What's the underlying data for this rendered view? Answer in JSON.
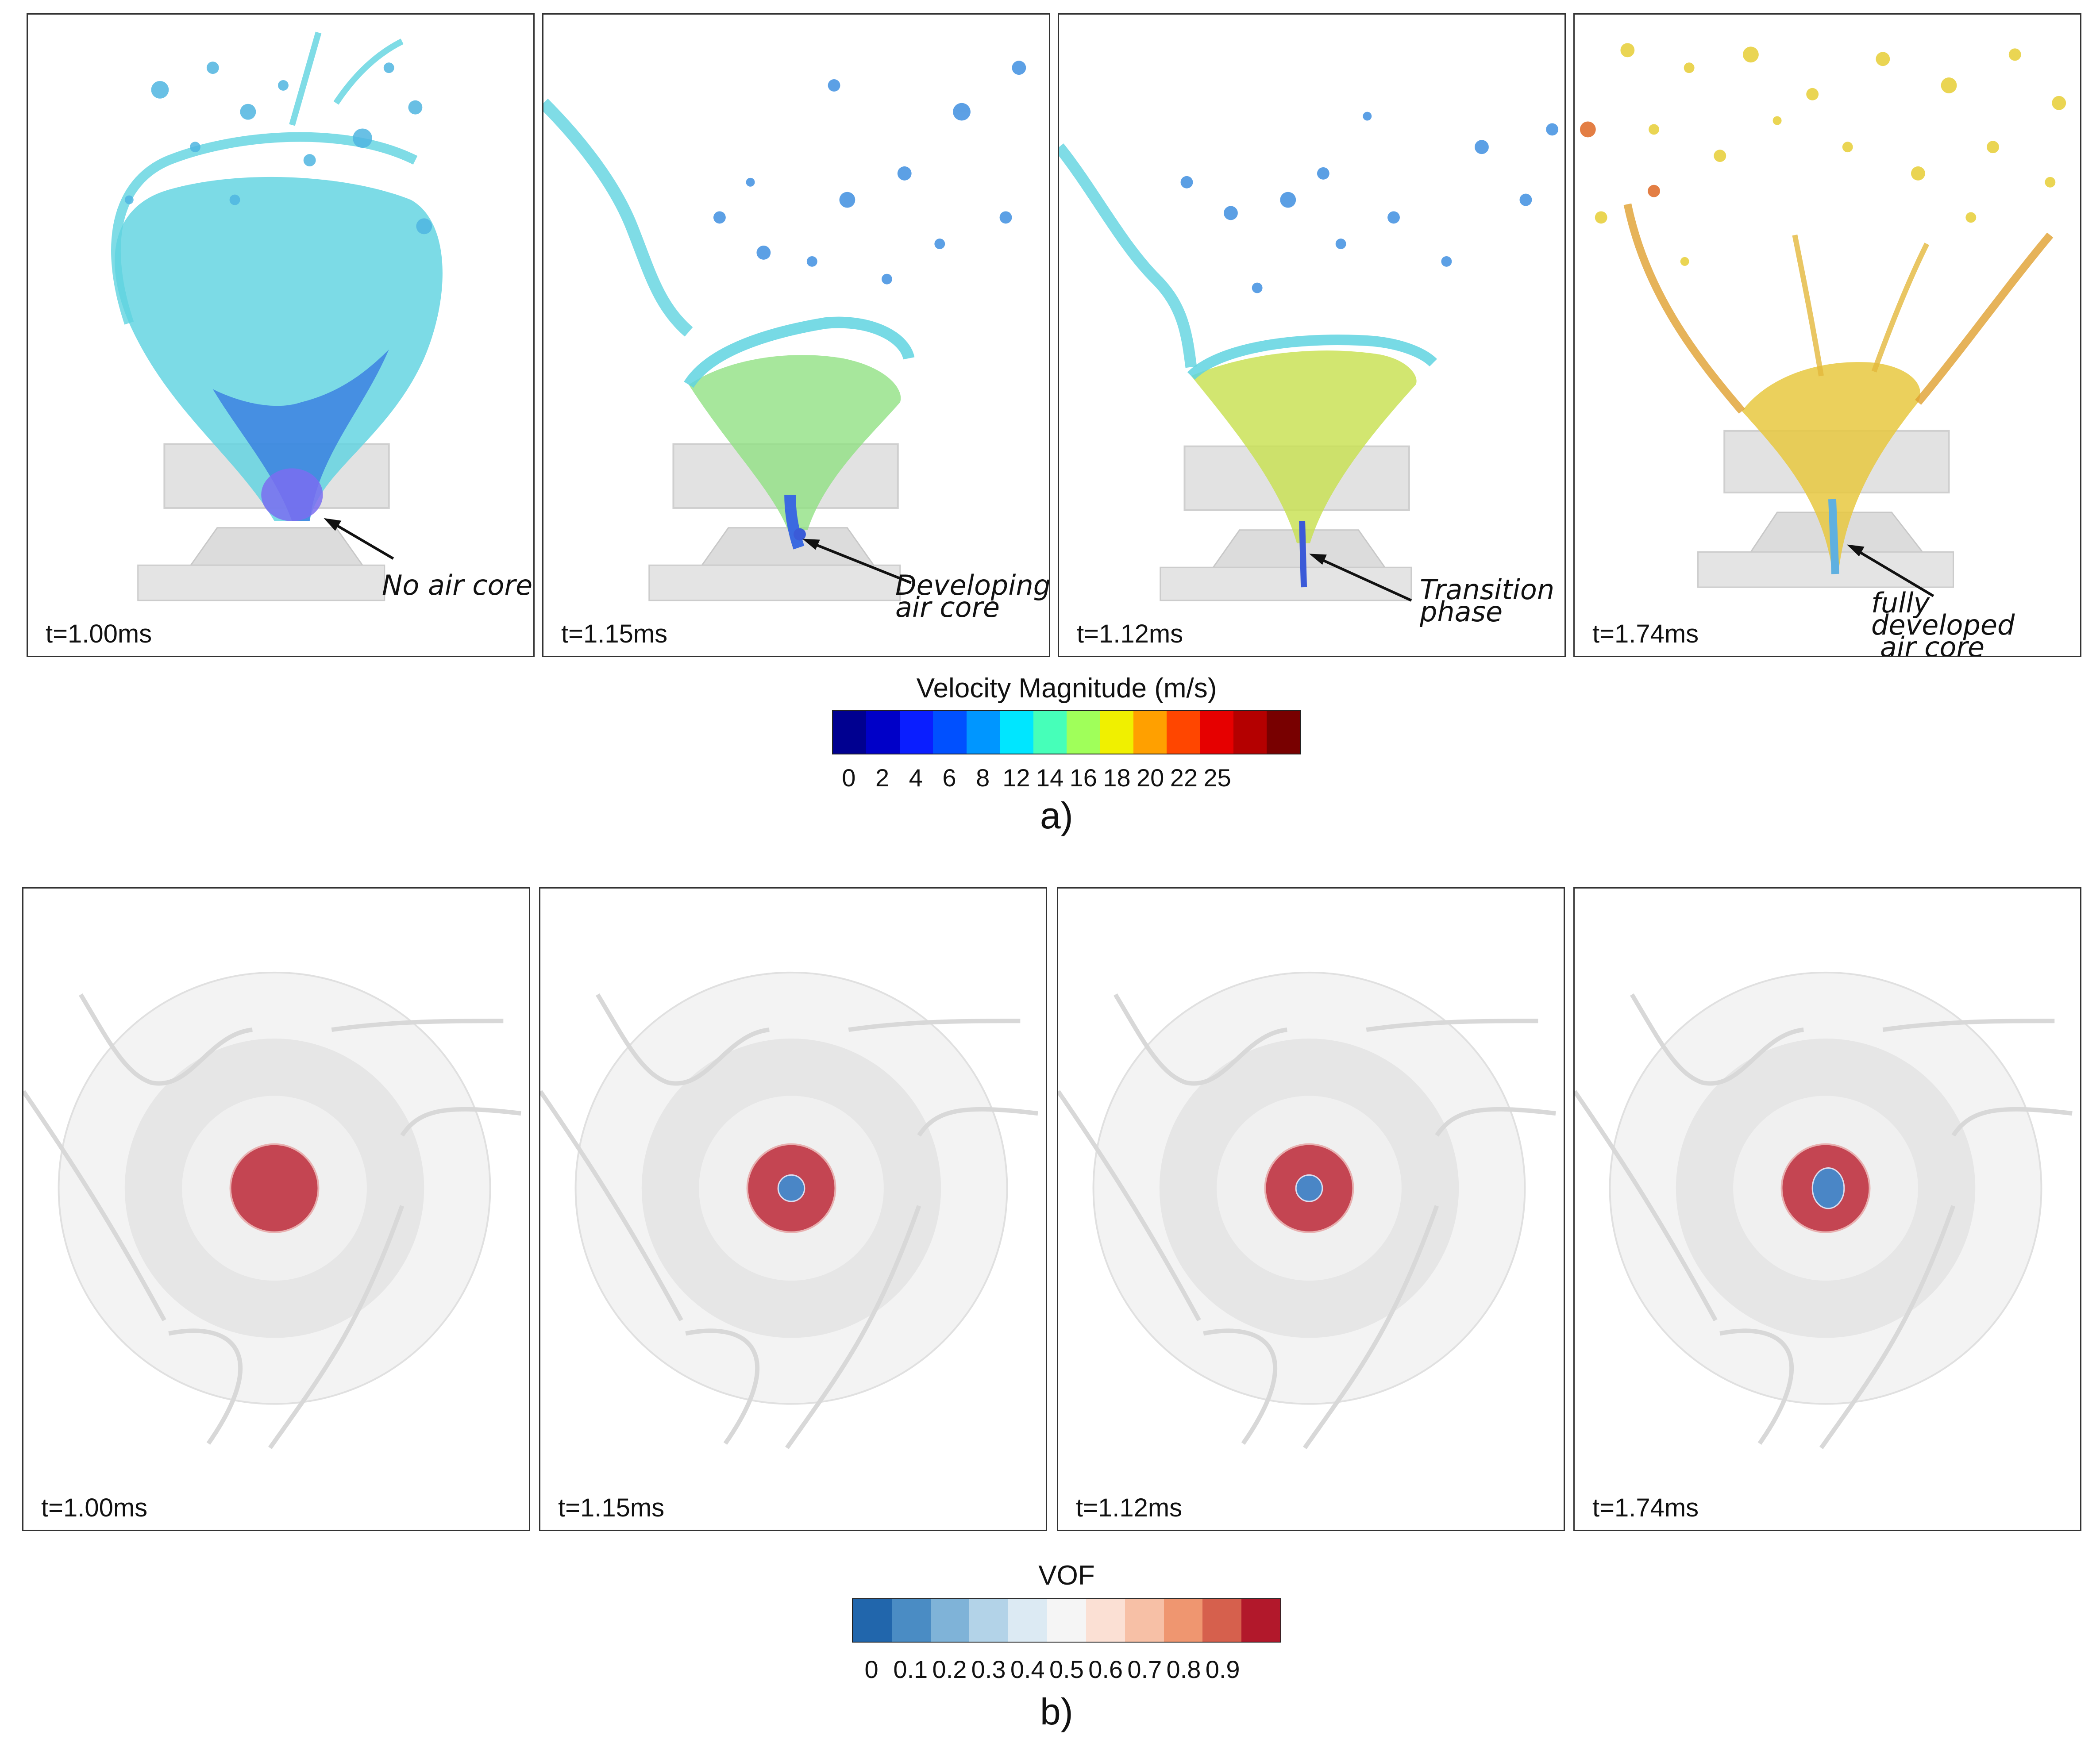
{
  "panels_a": [
    {
      "time": "t=1.00ms",
      "annotation": [
        "No air core"
      ]
    },
    {
      "time": "t=1.15ms",
      "annotation": [
        "Developing",
        "air core"
      ]
    },
    {
      "time": "t=1.12ms",
      "annotation": [
        "Transition",
        "phase"
      ]
    },
    {
      "time": "t=1.74ms",
      "annotation": [
        "fully developed",
        "air core"
      ]
    }
  ],
  "panels_b": [
    {
      "time": "t=1.00ms",
      "air_core": 0
    },
    {
      "time": "t=1.15ms",
      "air_core": 1
    },
    {
      "time": "t=1.12ms",
      "air_core": 1
    },
    {
      "time": "t=1.74ms",
      "air_core": 1
    }
  ],
  "colorbar_a": {
    "title": "Velocity Magnitude (m/s)",
    "ticks": [
      "0",
      "2",
      "4",
      "6",
      "8",
      "12",
      "14",
      "16",
      "18",
      "20",
      "22",
      "25"
    ],
    "colors": [
      "#000090",
      "#0000c8",
      "#0a1eff",
      "#0050ff",
      "#0096ff",
      "#00e6ff",
      "#46ffb9",
      "#a0ff5a",
      "#f0f000",
      "#ffa000",
      "#ff4600",
      "#e60000",
      "#b40000",
      "#780000"
    ]
  },
  "colorbar_b": {
    "title": "VOF",
    "ticks": [
      "0",
      "0.1",
      "0.2",
      "0.3",
      "0.4",
      "0.5",
      "0.6",
      "0.7",
      "0.8",
      "0.9"
    ],
    "colors": [
      "#2166ac",
      "#4a8cc4",
      "#7fb3d8",
      "#b3d3e8",
      "#dceaf3",
      "#f5f5f5",
      "#fbe0d4",
      "#f7c0a6",
      "#ef9670",
      "#d6604d",
      "#b2182b"
    ]
  },
  "captions": {
    "a": "a)",
    "b": "b)"
  },
  "colors": {
    "liquid_a": "#5fd3e0",
    "liquid_d": "#e8c840",
    "vof_red": "#c44552",
    "vof_blue": "#4a86c6",
    "grey": "#ececec"
  }
}
